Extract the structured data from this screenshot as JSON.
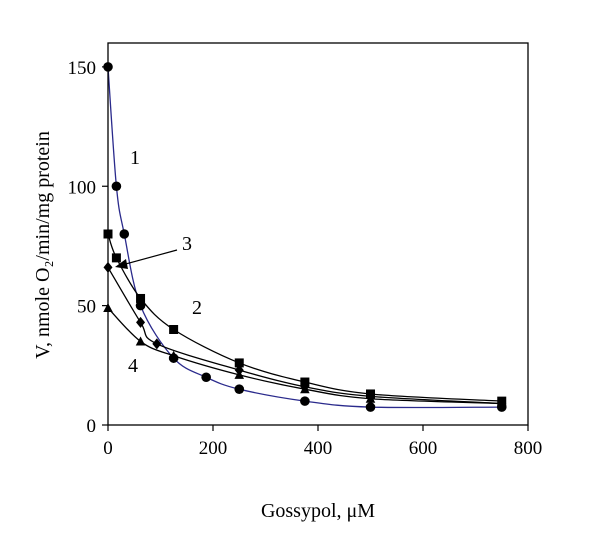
{
  "chart_data": {
    "type": "line",
    "title": "",
    "xlabel": "Gossypol, μM",
    "ylabel": "V, nmole O₂/min/mg protein",
    "xlim": [
      0,
      800
    ],
    "ylim": [
      0,
      160
    ],
    "xticks": [
      0,
      200,
      400,
      600,
      800
    ],
    "yticks": [
      0,
      50,
      100,
      150
    ],
    "grid": false,
    "legend": "none",
    "series": [
      {
        "name": "1",
        "marker": "circle",
        "line_color": "#2a2a8c",
        "x": [
          0,
          16,
          31,
          62,
          125,
          187,
          250,
          375,
          500,
          750
        ],
        "y": [
          150,
          100,
          80,
          50,
          28,
          20,
          15,
          10,
          7.5,
          7.5
        ]
      },
      {
        "name": "2",
        "marker": "square",
        "line_color": "#000000",
        "x": [
          0,
          16,
          62,
          125,
          250,
          375,
          500,
          750
        ],
        "y": [
          80,
          70,
          53,
          40,
          26,
          18,
          13,
          10
        ]
      },
      {
        "name": "3",
        "marker": "diamond",
        "line_color": "#000000",
        "x": [
          0,
          62,
          93,
          250,
          375,
          500,
          750
        ],
        "y": [
          66,
          43,
          34,
          23,
          16,
          12,
          9
        ]
      },
      {
        "name": "4",
        "marker": "triangle",
        "line_color": "#000000",
        "x": [
          0,
          62,
          125,
          250,
          375,
          500,
          750
        ],
        "y": [
          49,
          35,
          29,
          21,
          15,
          11,
          9
        ]
      }
    ],
    "annotations": [
      "1",
      "2",
      "3",
      "4"
    ]
  }
}
